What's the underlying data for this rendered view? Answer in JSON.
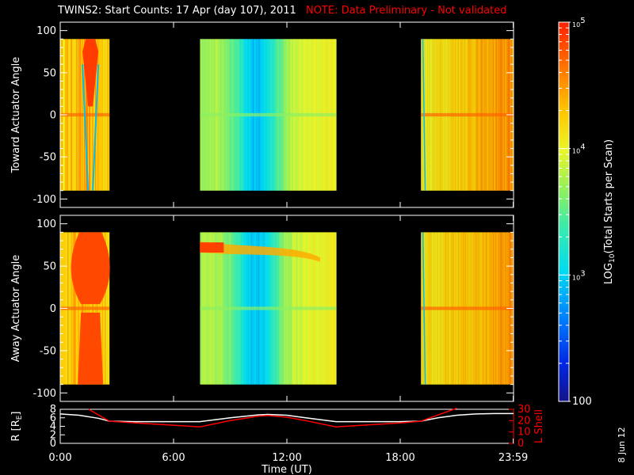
{
  "header": {
    "title": "TWINS2: Start Counts: 17 Apr (day 107), 2011",
    "note": "NOTE: Data Preliminary - Not validated"
  },
  "stamp": "8 Jun 12",
  "colors": {
    "background": "#000000",
    "axis": "#ffffff",
    "note": "#ff0000",
    "r_line": "#ffffff",
    "l_line": "#ff0000"
  },
  "chart_data": [
    {
      "type": "heatmap",
      "panel": "toward",
      "ylabel": "Toward Actuator Angle",
      "ylim": [
        -110,
        110
      ],
      "yticks": [
        -100,
        -50,
        0,
        50,
        100
      ],
      "angle_range": [
        -90,
        90
      ],
      "xlim": [
        0,
        24
      ],
      "segments": [
        {
          "start": 0.0,
          "end": 2.6
        },
        {
          "start": 7.4,
          "end": 14.6
        },
        {
          "start": 19.1,
          "end": 24.0
        }
      ]
    },
    {
      "type": "heatmap",
      "panel": "away",
      "ylabel": "Away Actuator Angle",
      "ylim": [
        -110,
        110
      ],
      "yticks": [
        -100,
        -50,
        0,
        50,
        100
      ],
      "angle_range": [
        -90,
        90
      ],
      "xlim": [
        0,
        24
      ],
      "segments": [
        {
          "start": 0.0,
          "end": 2.6
        },
        {
          "start": 7.4,
          "end": 14.6
        },
        {
          "start": 19.1,
          "end": 24.0
        }
      ]
    },
    {
      "type": "line",
      "panel": "orbit",
      "xlabel": "Time (UT)",
      "xlim": [
        0,
        24
      ],
      "xticks": [
        0,
        6,
        12,
        18,
        23.983
      ],
      "xtick_labels": [
        "0:00",
        "6:00",
        "12:00",
        "18:00",
        "23:59"
      ],
      "y_left": {
        "label": "R [RE]",
        "label_main": "R [R",
        "label_sub": "E",
        "label_end": "]",
        "ylim": [
          0,
          8
        ],
        "ticks": [
          0,
          2,
          4,
          6,
          8
        ]
      },
      "y_right": {
        "label": "L Shell",
        "ylim": [
          0,
          30
        ],
        "ticks": [
          0,
          10,
          20,
          30
        ]
      },
      "series": [
        {
          "name": "R [RE]",
          "axis": "left",
          "color": "#ffffff",
          "x": [
            0,
            1,
            2,
            2.6,
            4,
            6,
            7.4,
            9,
            10.5,
            11,
            12,
            13,
            14.6,
            16,
            18,
            19.1,
            20,
            21,
            22,
            23,
            24
          ],
          "y": [
            6.9,
            6.6,
            5.9,
            5.2,
            5.1,
            5.1,
            5.1,
            6.0,
            6.7,
            6.8,
            6.6,
            6.0,
            5.1,
            5.1,
            5.1,
            5.2,
            6.0,
            6.6,
            6.9,
            7.0,
            7.0
          ]
        },
        {
          "name": "L Shell",
          "axis": "right",
          "color": "#ff0000",
          "x": [
            1.5,
            2.6,
            4,
            6,
            7.4,
            9,
            10.5,
            11,
            12,
            13,
            14.6,
            16,
            18,
            19.1,
            20,
            21
          ],
          "y": [
            30,
            19.5,
            18,
            16,
            14.5,
            20,
            24,
            24.5,
            23,
            20,
            14.5,
            16,
            18,
            19.5,
            25,
            31
          ]
        }
      ]
    },
    {
      "type": "colorbar",
      "label": "LOG10(Total Starts per Scan)",
      "label_pre": "LOG",
      "label_sub": "10",
      "label_post": "(Total Starts per Scan)",
      "range": [
        100,
        100000
      ],
      "ticks": [
        {
          "value": 100,
          "text": "100",
          "base": "",
          "exp": ""
        },
        {
          "value": 1000,
          "text": "",
          "base": "10",
          "exp": "3"
        },
        {
          "value": 10000,
          "text": "",
          "base": "10",
          "exp": "4"
        },
        {
          "value": 100000,
          "text": "",
          "base": "10",
          "exp": "5"
        }
      ]
    }
  ]
}
